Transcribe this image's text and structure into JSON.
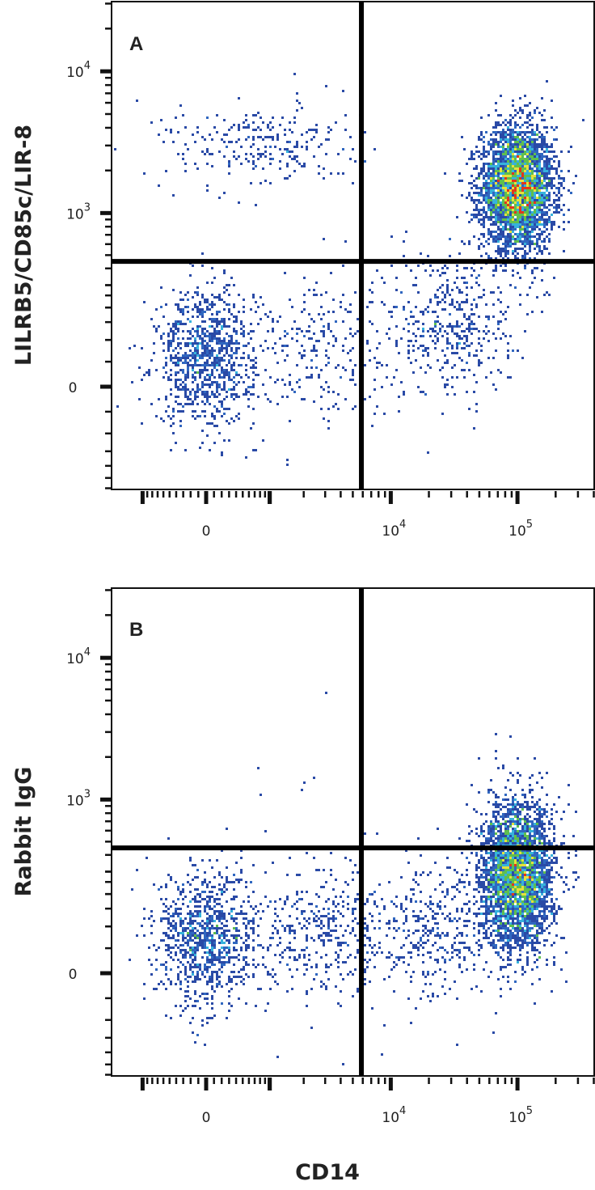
{
  "chart_data": [
    {
      "type": "scatter",
      "subtype": "flow-cytometry density dot plot",
      "panel_label": "A",
      "xlabel": "CD14",
      "ylabel": "LILRB5/CD85c/LIR-8",
      "x_scale": "biexponential",
      "y_scale": "biexponential",
      "x_ticks": [
        {
          "value": 0,
          "label": "0"
        },
        {
          "value": 10000,
          "base": "10",
          "exp": "4"
        },
        {
          "value": 100000,
          "base": "10",
          "exp": "5"
        }
      ],
      "y_ticks": [
        {
          "value": 0,
          "label": "0"
        },
        {
          "value": 1000,
          "base": "10",
          "exp": "3"
        },
        {
          "value": 10000,
          "base": "10",
          "exp": "4"
        }
      ],
      "xlim": [
        -1800,
        260000
      ],
      "ylim": [
        -300,
        30000
      ],
      "quadrant_gates": {
        "x": 5850,
        "y": 450
      },
      "populations": [
        {
          "quadrant": "upper-right",
          "center": [
            100000,
            1500
          ],
          "events": 3600,
          "spread": [
            0.33,
            0.5
          ]
        },
        {
          "quadrant": "lower-left",
          "center": [
            0,
            60
          ],
          "events": 950,
          "spread": [
            0.45,
            0.55
          ]
        },
        {
          "quadrant": "upper-left",
          "center": [
            800,
            3000
          ],
          "events": 260,
          "spread": [
            0.9,
            0.35
          ]
        },
        {
          "quadrant": "lower-right",
          "center": [
            30000,
            150
          ],
          "events": 450,
          "spread": [
            0.6,
            0.6
          ]
        },
        {
          "quadrant": "lower-left",
          "center": [
            2500,
            80
          ],
          "events": 250,
          "spread": [
            0.7,
            0.6
          ]
        }
      ],
      "colors": [
        "#2a4aa6",
        "#3067c0",
        "#36b2dc",
        "#5fbf4e",
        "#e6e03c",
        "#e2361c"
      ]
    },
    {
      "type": "scatter",
      "subtype": "flow-cytometry density dot plot",
      "panel_label": "B",
      "xlabel": "CD14",
      "ylabel": "Rabbit IgG",
      "x_scale": "biexponential",
      "y_scale": "biexponential",
      "x_ticks": [
        {
          "value": 0,
          "label": "0"
        },
        {
          "value": 10000,
          "base": "10",
          "exp": "4"
        },
        {
          "value": 100000,
          "base": "10",
          "exp": "5"
        }
      ],
      "y_ticks": [
        {
          "value": 0,
          "label": "0"
        },
        {
          "value": 1000,
          "base": "10",
          "exp": "3"
        },
        {
          "value": 10000,
          "base": "10",
          "exp": "4"
        }
      ],
      "xlim": [
        -1800,
        260000
      ],
      "ylim": [
        -300,
        30000
      ],
      "quadrant_gates": {
        "x": 5850,
        "y": 450
      },
      "populations": [
        {
          "quadrant": "lower-right",
          "center": [
            100000,
            280
          ],
          "events": 3300,
          "spread": [
            0.33,
            0.6
          ]
        },
        {
          "quadrant": "lower-left",
          "center": [
            0,
            70
          ],
          "events": 950,
          "spread": [
            0.45,
            0.55
          ]
        },
        {
          "quadrant": "lower-left",
          "center": [
            3000,
            90
          ],
          "events": 450,
          "spread": [
            0.8,
            0.55
          ]
        },
        {
          "quadrant": "lower-right",
          "center": [
            25000,
            90
          ],
          "events": 350,
          "spread": [
            0.6,
            0.55
          ]
        },
        {
          "quadrant": "upper-left",
          "center": [
            1500,
            2000
          ],
          "events": 6,
          "spread": [
            0.8,
            0.8
          ]
        }
      ],
      "colors": [
        "#2a4aa6",
        "#3067c0",
        "#36b2dc",
        "#5fbf4e",
        "#e6e03c",
        "#e2361c"
      ]
    }
  ]
}
